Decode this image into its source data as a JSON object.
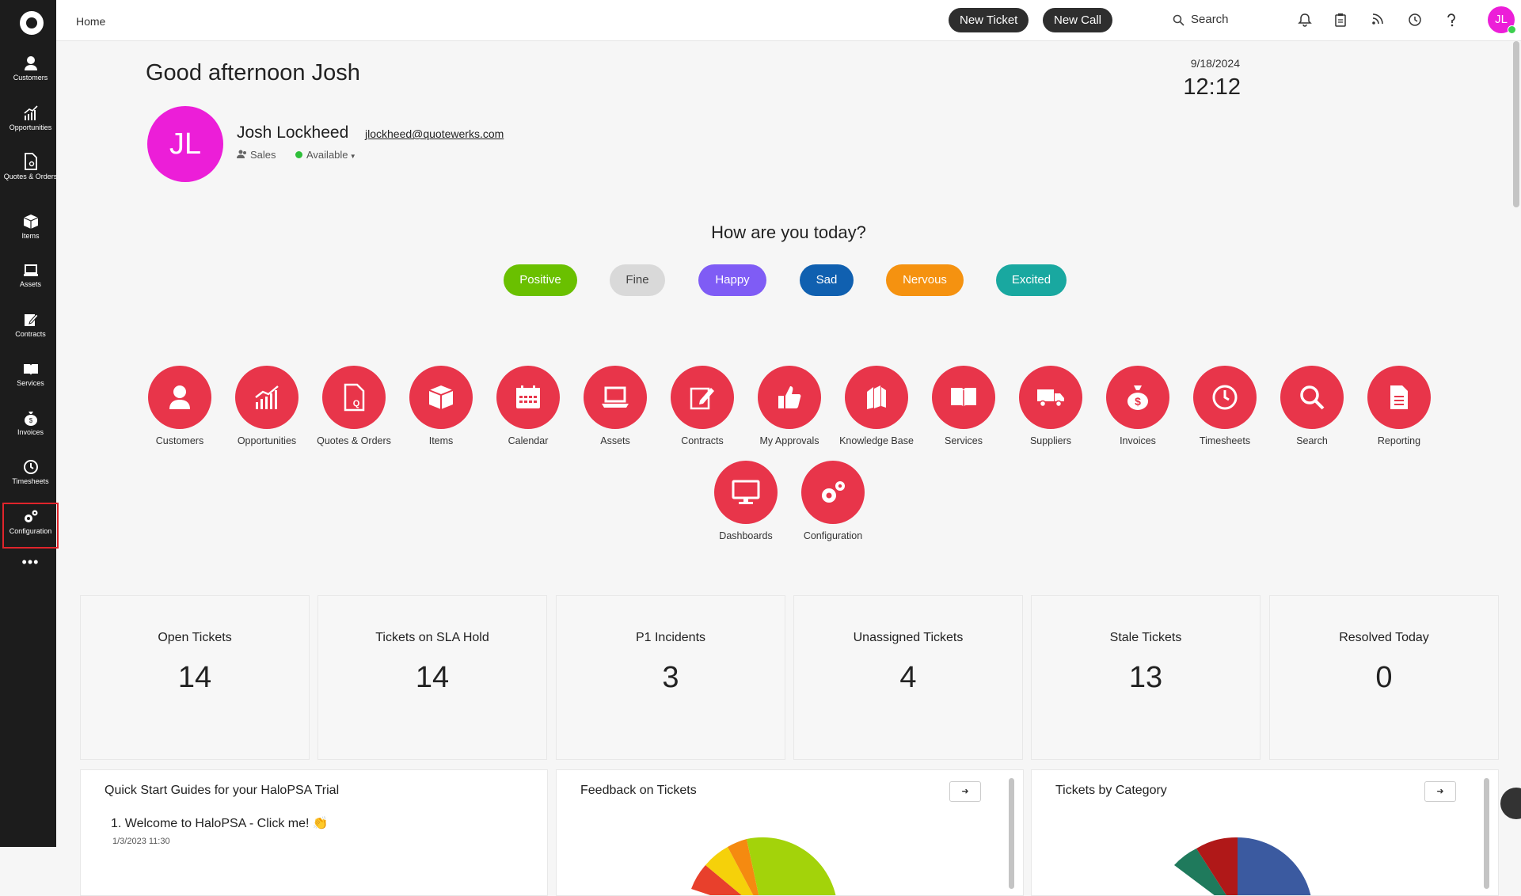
{
  "sidebar": {
    "items": [
      {
        "label": "Customers",
        "icon": "person-icon"
      },
      {
        "label": "Opportunities",
        "icon": "chart-icon"
      },
      {
        "label": "Quotes & Orders",
        "icon": "quote-document-icon"
      },
      {
        "label": "Items",
        "icon": "box-icon"
      },
      {
        "label": "Assets",
        "icon": "laptop-icon"
      },
      {
        "label": "Contracts",
        "icon": "pen-document-icon"
      },
      {
        "label": "Services",
        "icon": "book-icon"
      },
      {
        "label": "Invoices",
        "icon": "money-bag-icon"
      },
      {
        "label": "Timesheets",
        "icon": "clock-icon"
      },
      {
        "label": "Configuration",
        "icon": "gears-icon",
        "active": true
      }
    ],
    "more": "•••"
  },
  "topbar": {
    "breadcrumb": "Home",
    "new_ticket": "New Ticket",
    "new_call": "New Call",
    "search_label": "Search",
    "avatar_initials": "JL"
  },
  "user": {
    "greeting": "Good afternoon Josh",
    "date": "9/18/2024",
    "time": "12:12",
    "initials": "JL",
    "name": "Josh Lockheed",
    "email": "jlockheed@quotewerks.com",
    "role": "Sales",
    "status": "Available",
    "avatar_color": "#ec1ed8"
  },
  "mood": {
    "question": "How are you today?",
    "options": [
      {
        "label": "Positive",
        "color": "#6ac000"
      },
      {
        "label": "Fine",
        "color": "#d9d9d9"
      },
      {
        "label": "Happy",
        "color": "#7f5cf5"
      },
      {
        "label": "Sad",
        "color": "#1060b0"
      },
      {
        "label": "Nervous",
        "color": "#f59210"
      },
      {
        "label": "Excited",
        "color": "#19a8a0"
      }
    ]
  },
  "tiles": [
    {
      "label": "Customers",
      "icon": "person-icon"
    },
    {
      "label": "Opportunities",
      "icon": "chart-icon"
    },
    {
      "label": "Quotes & Orders",
      "icon": "quote-document-icon"
    },
    {
      "label": "Items",
      "icon": "box-icon"
    },
    {
      "label": "Calendar",
      "icon": "calendar-icon"
    },
    {
      "label": "Assets",
      "icon": "laptop-icon"
    },
    {
      "label": "Contracts",
      "icon": "pen-document-icon"
    },
    {
      "label": "My Approvals",
      "icon": "thumbs-up-icon"
    },
    {
      "label": "Knowledge Base",
      "icon": "books-icon"
    },
    {
      "label": "Services",
      "icon": "book-icon"
    },
    {
      "label": "Suppliers",
      "icon": "truck-icon"
    },
    {
      "label": "Invoices",
      "icon": "money-bag-icon"
    },
    {
      "label": "Timesheets",
      "icon": "clock-icon"
    },
    {
      "label": "Search",
      "icon": "search-icon"
    },
    {
      "label": "Reporting",
      "icon": "report-icon"
    },
    {
      "label": "Dashboards",
      "icon": "monitor-icon"
    },
    {
      "label": "Configuration",
      "icon": "gears-icon"
    }
  ],
  "tile_color": "#e8354a",
  "stats": [
    {
      "title": "Open Tickets",
      "value": "14"
    },
    {
      "title": "Tickets on SLA Hold",
      "value": "14"
    },
    {
      "title": "P1 Incidents",
      "value": "3"
    },
    {
      "title": "Unassigned Tickets",
      "value": "4"
    },
    {
      "title": "Stale Tickets",
      "value": "13"
    },
    {
      "title": "Resolved Today",
      "value": "0"
    }
  ],
  "panels": {
    "guides": {
      "title": "Quick Start Guides for your HaloPSA Trial",
      "item": "1. Welcome to HaloPSA - Click me! 👏",
      "item_date": "1/3/2023 11:30"
    },
    "feedback": {
      "title": "Feedback on Tickets"
    },
    "category": {
      "title": "Tickets by Category"
    }
  }
}
